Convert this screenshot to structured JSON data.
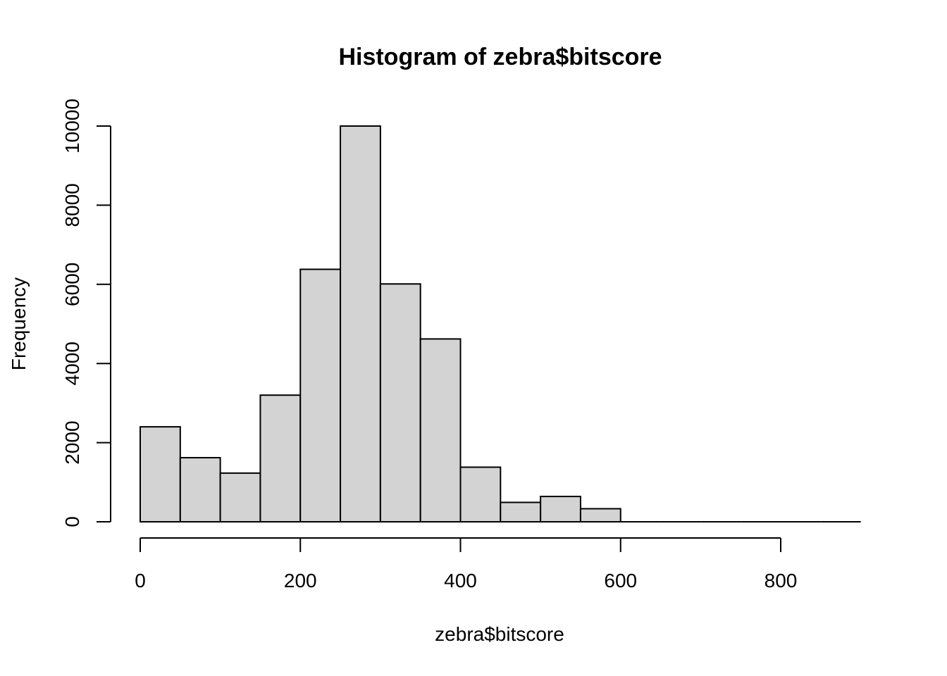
{
  "chart_data": {
    "type": "bar",
    "title": "Histogram of zebra$bitscore",
    "xlabel": "zebra$bitscore",
    "ylabel": "Frequency",
    "bin_edges": [
      0,
      50,
      100,
      150,
      200,
      250,
      300,
      350,
      400,
      450,
      500,
      550,
      600,
      650,
      700,
      750,
      800,
      850,
      900
    ],
    "values": [
      2400,
      1620,
      1230,
      3200,
      6380,
      10000,
      6010,
      4620,
      1380,
      490,
      640,
      330,
      0,
      0,
      0,
      0,
      0,
      0
    ],
    "xlim": [
      0,
      900
    ],
    "ylim": [
      0,
      10000
    ],
    "x_ticks": [
      0,
      200,
      400,
      600,
      800
    ],
    "y_ticks": [
      0,
      2000,
      4000,
      6000,
      8000,
      10000
    ],
    "grid": false,
    "bar_color": "#d3d3d3",
    "edge_color": "#000000"
  }
}
